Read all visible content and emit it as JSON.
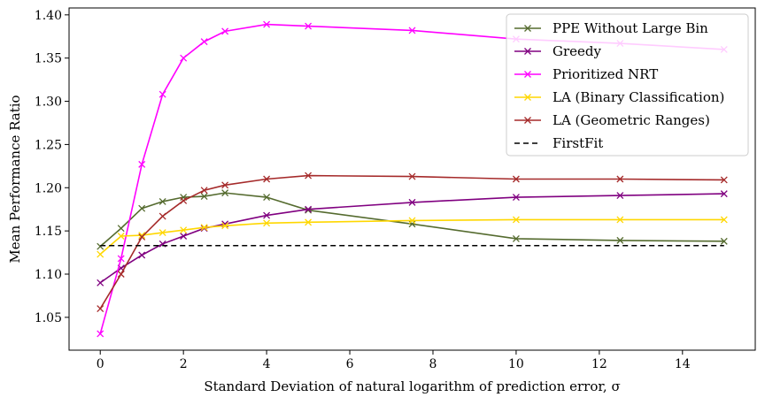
{
  "chart_data": {
    "type": "line",
    "title": "",
    "xlabel": "Standard Deviation of natural logarithm of prediction error, σ",
    "ylabel": "Mean Performance Ratio",
    "xlim": [
      -0.75,
      15.75
    ],
    "ylim": [
      1.012,
      1.408
    ],
    "xticks": [
      0,
      2,
      4,
      6,
      8,
      10,
      12,
      14
    ],
    "yticks": [
      1.05,
      1.1,
      1.15,
      1.2,
      1.25,
      1.3,
      1.35,
      1.4
    ],
    "xtick_labels": [
      "0",
      "2",
      "4",
      "6",
      "8",
      "10",
      "12",
      "14"
    ],
    "ytick_labels": [
      "1.05",
      "1.10",
      "1.15",
      "1.20",
      "1.25",
      "1.30",
      "1.35",
      "1.40"
    ],
    "grid": false,
    "legend_position": "top-right",
    "series": [
      {
        "name": "PPE Without Large Bin",
        "color": "#556b2f",
        "marker": "x",
        "x": [
          0,
          0.5,
          1,
          1.5,
          2,
          2.5,
          3,
          4,
          5,
          7.5,
          10,
          12.5,
          15
        ],
        "y": [
          1.132,
          1.153,
          1.176,
          1.184,
          1.189,
          1.19,
          1.194,
          1.189,
          1.174,
          1.158,
          1.141,
          1.139,
          1.138
        ]
      },
      {
        "name": "Greedy",
        "color": "#800080",
        "marker": "x",
        "x": [
          0,
          0.5,
          1,
          1.5,
          2,
          2.5,
          3,
          4,
          5,
          7.5,
          10,
          12.5,
          15
        ],
        "y": [
          1.09,
          1.107,
          1.122,
          1.135,
          1.144,
          1.153,
          1.158,
          1.168,
          1.175,
          1.183,
          1.189,
          1.191,
          1.193
        ]
      },
      {
        "name": "Prioritized NRT",
        "color": "#ff00ff",
        "marker": "x",
        "x": [
          0,
          0.5,
          1,
          1.5,
          2,
          2.5,
          3,
          4,
          5,
          7.5,
          10,
          12.5,
          15
        ],
        "y": [
          1.031,
          1.118,
          1.227,
          1.308,
          1.35,
          1.369,
          1.381,
          1.389,
          1.387,
          1.382,
          1.372,
          1.367,
          1.36
        ]
      },
      {
        "name": "LA (Binary Classification)",
        "color": "#ffd700",
        "marker": "x",
        "x": [
          0,
          0.5,
          1,
          1.5,
          2,
          2.5,
          3,
          4,
          5,
          7.5,
          10,
          12.5,
          15
        ],
        "y": [
          1.123,
          1.144,
          1.145,
          1.148,
          1.151,
          1.154,
          1.156,
          1.159,
          1.16,
          1.162,
          1.163,
          1.163,
          1.163
        ]
      },
      {
        "name": "LA (Geometric Ranges)",
        "color": "#a52a2a",
        "marker": "x",
        "x": [
          0,
          0.5,
          1,
          1.5,
          2,
          2.5,
          3,
          4,
          5,
          7.5,
          10,
          12.5,
          15
        ],
        "y": [
          1.06,
          1.1,
          1.143,
          1.167,
          1.185,
          1.197,
          1.203,
          1.21,
          1.214,
          1.213,
          1.21,
          1.21,
          1.209
        ]
      },
      {
        "name": "FirstFit",
        "color": "#000000",
        "marker": "none",
        "dash": true,
        "x": [
          0,
          15
        ],
        "y": [
          1.133,
          1.133
        ]
      }
    ]
  }
}
